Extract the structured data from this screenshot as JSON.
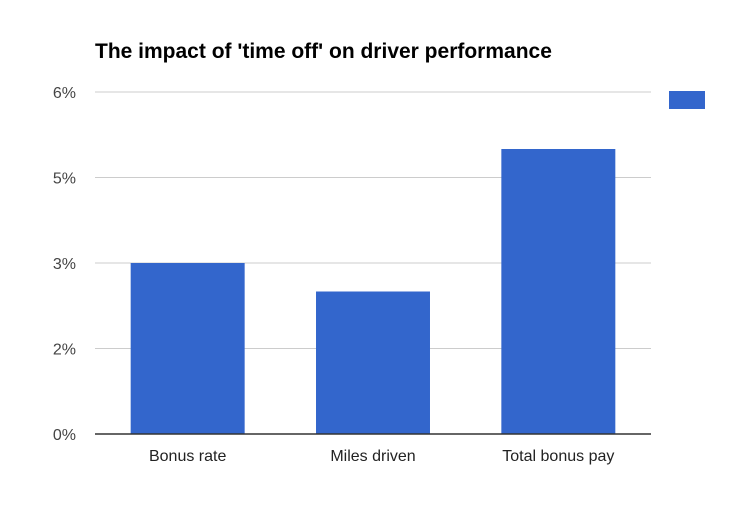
{
  "chart_data": {
    "type": "bar",
    "title": "The impact of 'time off' on driver performance",
    "xlabel": "",
    "ylabel": "",
    "categories": [
      "Bonus rate",
      "Miles driven",
      "Total bonus pay"
    ],
    "series": [
      {
        "name": "",
        "values": [
          3.0,
          2.5,
          5.0
        ],
        "color": "#3366cc"
      }
    ],
    "ylim": [
      0,
      6
    ],
    "yticks": [
      0,
      1.5,
      3,
      4.5,
      6
    ],
    "ytick_labels": [
      "0%",
      "2%",
      "3%",
      "5%",
      "6%"
    ],
    "grid": true,
    "legend": "right",
    "colors": {
      "bar": "#3366cc",
      "grid": "#cccccc",
      "axis": "#333333"
    }
  }
}
